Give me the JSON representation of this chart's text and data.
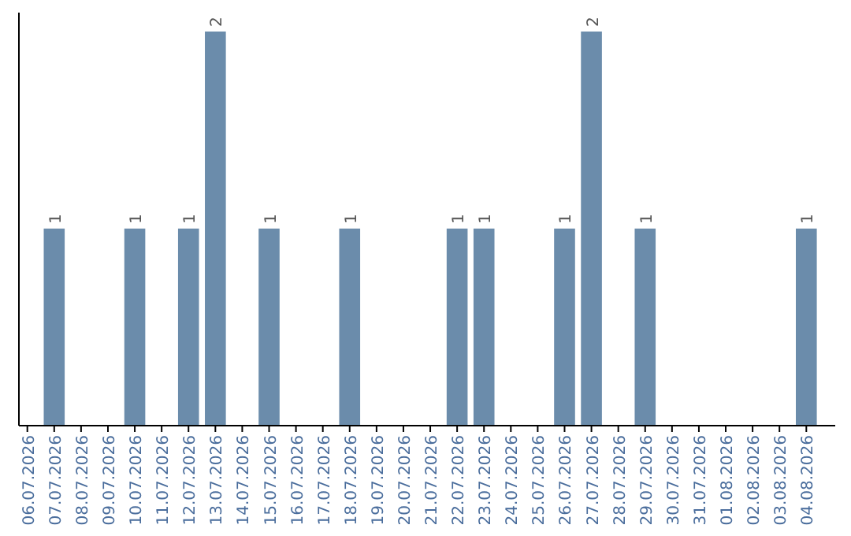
{
  "chart_data": {
    "type": "bar",
    "categories": [
      "06.07.2026",
      "07.07.2026",
      "08.07.2026",
      "09.07.2026",
      "10.07.2026",
      "11.07.2026",
      "12.07.2026",
      "13.07.2026",
      "14.07.2026",
      "15.07.2026",
      "16.07.2026",
      "17.07.2026",
      "18.07.2026",
      "19.07.2026",
      "20.07.2026",
      "21.07.2026",
      "22.07.2026",
      "23.07.2026",
      "24.07.2026",
      "25.07.2026",
      "26.07.2026",
      "27.07.2026",
      "28.07.2026",
      "29.07.2026",
      "30.07.2026",
      "31.07.2026",
      "01.08.2026",
      "02.08.2026",
      "03.08.2026",
      "04.08.2026"
    ],
    "values": [
      0,
      1,
      0,
      0,
      1,
      0,
      1,
      2,
      0,
      1,
      0,
      0,
      1,
      0,
      0,
      0,
      1,
      1,
      0,
      0,
      1,
      2,
      0,
      1,
      0,
      0,
      0,
      0,
      0,
      1
    ],
    "value_labels": [
      null,
      "1",
      null,
      null,
      "1",
      null,
      "1",
      "2",
      null,
      "1",
      null,
      null,
      "1",
      null,
      null,
      null,
      "1",
      "1",
      null,
      null,
      "1",
      "2",
      null,
      "1",
      null,
      null,
      null,
      null,
      null,
      "1"
    ],
    "color": "#6b8cab",
    "tick_labels": "x",
    "grid": false
  }
}
